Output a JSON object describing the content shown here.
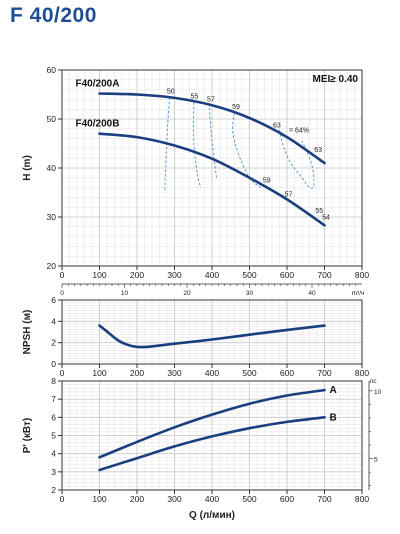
{
  "title": "F 40/200",
  "colors": {
    "title": "#1d4e96",
    "curve": "#1b3f7e",
    "eff": "#4a90d9",
    "grid": "#c9c9c9"
  },
  "chart_data": [
    {
      "type": "line",
      "id": "head",
      "ylabel": "H (m)",
      "ylim": [
        20,
        60
      ],
      "yticks": [
        20,
        30,
        40,
        50,
        60
      ],
      "xlim": [
        0,
        800
      ],
      "xticks": [
        0,
        100,
        200,
        300,
        400,
        500,
        600,
        700,
        800
      ],
      "secondary_x": {
        "unit": "m³/ч",
        "ticks": [
          0,
          10,
          20,
          30,
          40
        ]
      },
      "grid": true,
      "annotation": "MEI≥ 0.40",
      "series": [
        {
          "name": "F40/200A",
          "x": [
            100,
            200,
            300,
            400,
            500,
            600,
            700
          ],
          "y": [
            55.2,
            55.0,
            54.3,
            52.8,
            50.2,
            46.3,
            41.0
          ]
        },
        {
          "name": "F40/200B",
          "x": [
            100,
            200,
            300,
            400,
            500,
            600,
            700
          ],
          "y": [
            47.0,
            46.3,
            44.6,
            41.9,
            38.0,
            33.6,
            28.3
          ]
        }
      ],
      "efficiency_curves": [
        {
          "label": "50",
          "x": [
            287,
            282,
            278,
            275,
            274
          ],
          "y": [
            54.4,
            49.0,
            43.0,
            37.5,
            35.0
          ]
        },
        {
          "label": "55",
          "x": [
            352,
            350,
            355,
            363,
            370
          ],
          "y": [
            53.4,
            48.0,
            42.0,
            38.0,
            36.0
          ]
        },
        {
          "label": "57",
          "x": [
            392,
            397,
            402,
            408,
            412
          ],
          "y": [
            53.2,
            48.0,
            44.0,
            40.5,
            38.0
          ]
        },
        {
          "label": "59",
          "x": [
            460,
            455,
            470,
            500,
            530
          ],
          "y": [
            51.2,
            47.5,
            43.0,
            38.0,
            36.0
          ]
        },
        {
          "label": "63",
          "x": [
            580,
            590,
            610,
            640,
            660,
            672,
            668,
            655,
            640
          ],
          "y": [
            47.8,
            44.5,
            41.0,
            38.0,
            36.0,
            36.5,
            40.0,
            43.0,
            45.5
          ]
        }
      ],
      "efficiency_labels": [
        {
          "text": "50",
          "x": 290,
          "y": 55.2
        },
        {
          "text": "55",
          "x": 353,
          "y": 54.2
        },
        {
          "text": "57",
          "x": 397,
          "y": 53.6
        },
        {
          "text": "59",
          "x": 464,
          "y": 52.0
        },
        {
          "text": "63",
          "x": 573,
          "y": 48.3
        },
        {
          "text": "= 64%",
          "x": 632,
          "y": 47.2
        },
        {
          "text": "63",
          "x": 683,
          "y": 43.3
        },
        {
          "text": "59",
          "x": 546,
          "y": 37.0
        },
        {
          "text": "57",
          "x": 604,
          "y": 34.2
        },
        {
          "text": "55",
          "x": 686,
          "y": 30.8
        },
        {
          "text": "54",
          "x": 704,
          "y": 29.5
        }
      ]
    },
    {
      "type": "line",
      "id": "npsh",
      "ylabel": "NPSH (м)",
      "ylim": [
        0,
        6
      ],
      "yticks": [
        0,
        2,
        4,
        6
      ],
      "xlim": [
        0,
        800
      ],
      "xticks": [
        0,
        100,
        200,
        300,
        400,
        500,
        600,
        700,
        800
      ],
      "grid": true,
      "series": [
        {
          "x": [
            100,
            125,
            150,
            175,
            200,
            225,
            250,
            300,
            400,
            500,
            600,
            700
          ],
          "y": [
            3.6,
            2.9,
            2.2,
            1.8,
            1.6,
            1.6,
            1.7,
            1.9,
            2.3,
            2.75,
            3.2,
            3.6
          ]
        }
      ]
    },
    {
      "type": "line",
      "id": "power",
      "ylabel": "P' (кВт)",
      "xlabel": "Q (л/мин)",
      "ylim": [
        2,
        8
      ],
      "yticks": [
        2,
        3,
        4,
        5,
        6,
        7,
        8
      ],
      "xlim": [
        0,
        800
      ],
      "xticks": [
        0,
        100,
        200,
        300,
        400,
        500,
        600,
        700,
        800
      ],
      "secondary_y": {
        "unit": "лс",
        "ticks": [
          5,
          10
        ]
      },
      "grid": true,
      "series": [
        {
          "name": "A",
          "x": [
            100,
            200,
            300,
            400,
            500,
            600,
            700
          ],
          "y": [
            3.8,
            4.65,
            5.45,
            6.15,
            6.75,
            7.2,
            7.5
          ]
        },
        {
          "name": "B",
          "x": [
            100,
            200,
            300,
            400,
            500,
            600,
            700
          ],
          "y": [
            3.1,
            3.75,
            4.4,
            4.95,
            5.4,
            5.75,
            6.0
          ]
        }
      ]
    }
  ]
}
